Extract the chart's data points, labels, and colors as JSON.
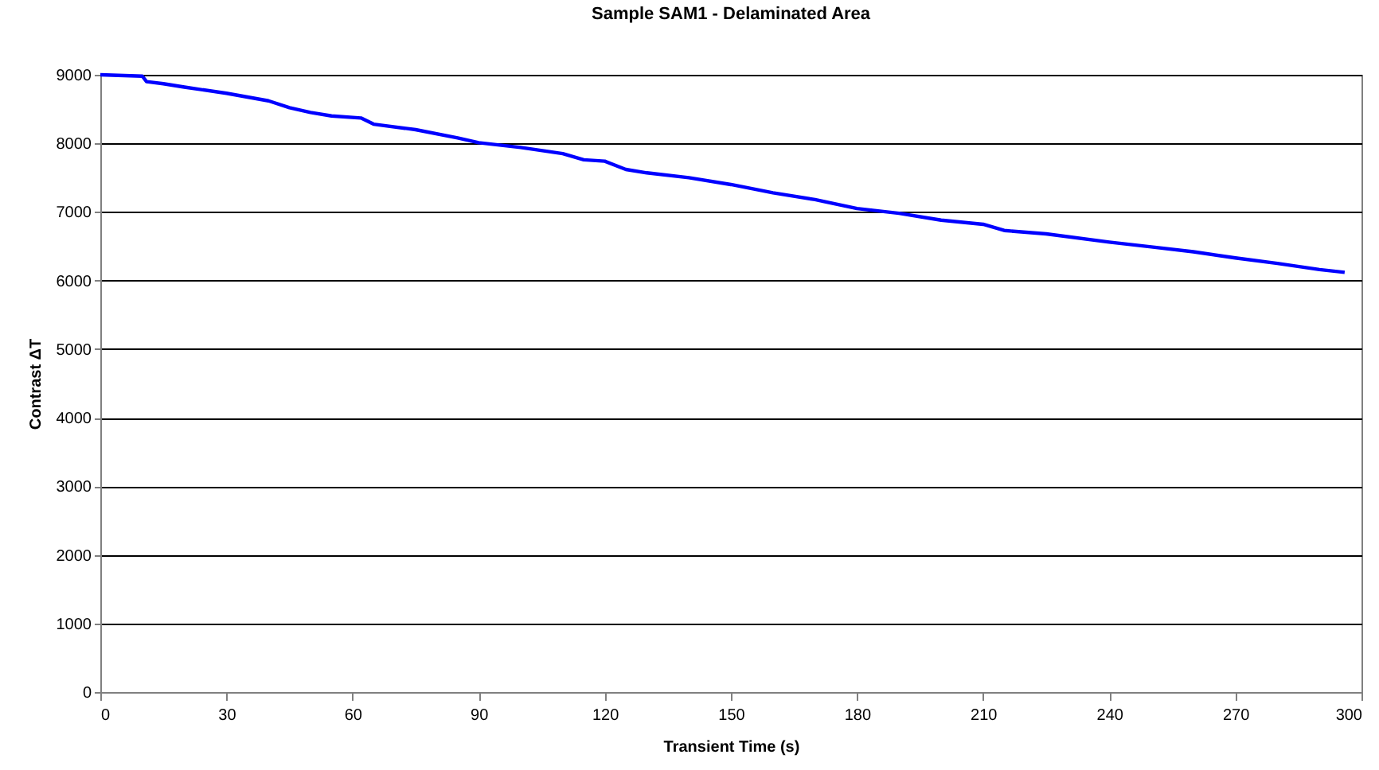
{
  "chart_data": {
    "type": "line",
    "title": "Sample SAM1 - Delaminated Area",
    "xlabel": "Transient Time (s)",
    "ylabel": "Contrast ΔT",
    "x": [
      0,
      10,
      11,
      15,
      20,
      30,
      40,
      45,
      50,
      55,
      62,
      65,
      75,
      85,
      90,
      100,
      110,
      115,
      120,
      125,
      130,
      140,
      150,
      160,
      170,
      180,
      190,
      200,
      210,
      215,
      225,
      240,
      250,
      260,
      270,
      280,
      290,
      296
    ],
    "series": [
      {
        "color": "#0000ff",
        "values": [
          9000,
          8980,
          8900,
          8870,
          8820,
          8730,
          8620,
          8520,
          8450,
          8400,
          8370,
          8280,
          8200,
          8080,
          8010,
          7940,
          7850,
          7760,
          7740,
          7620,
          7570,
          7500,
          7400,
          7280,
          7180,
          7050,
          6980,
          6880,
          6820,
          6730,
          6680,
          6560,
          6490,
          6420,
          6330,
          6250,
          6160,
          6120
        ]
      }
    ],
    "xlim": [
      0,
      300
    ],
    "xticks": [
      0,
      30,
      60,
      90,
      120,
      150,
      180,
      210,
      240,
      270,
      300
    ],
    "ylim": [
      0,
      9000
    ],
    "yticks": [
      0,
      1000,
      2000,
      3000,
      4000,
      5000,
      6000,
      7000,
      8000,
      9000
    ],
    "grid": "y",
    "marker": "none",
    "line_style": "solid"
  }
}
